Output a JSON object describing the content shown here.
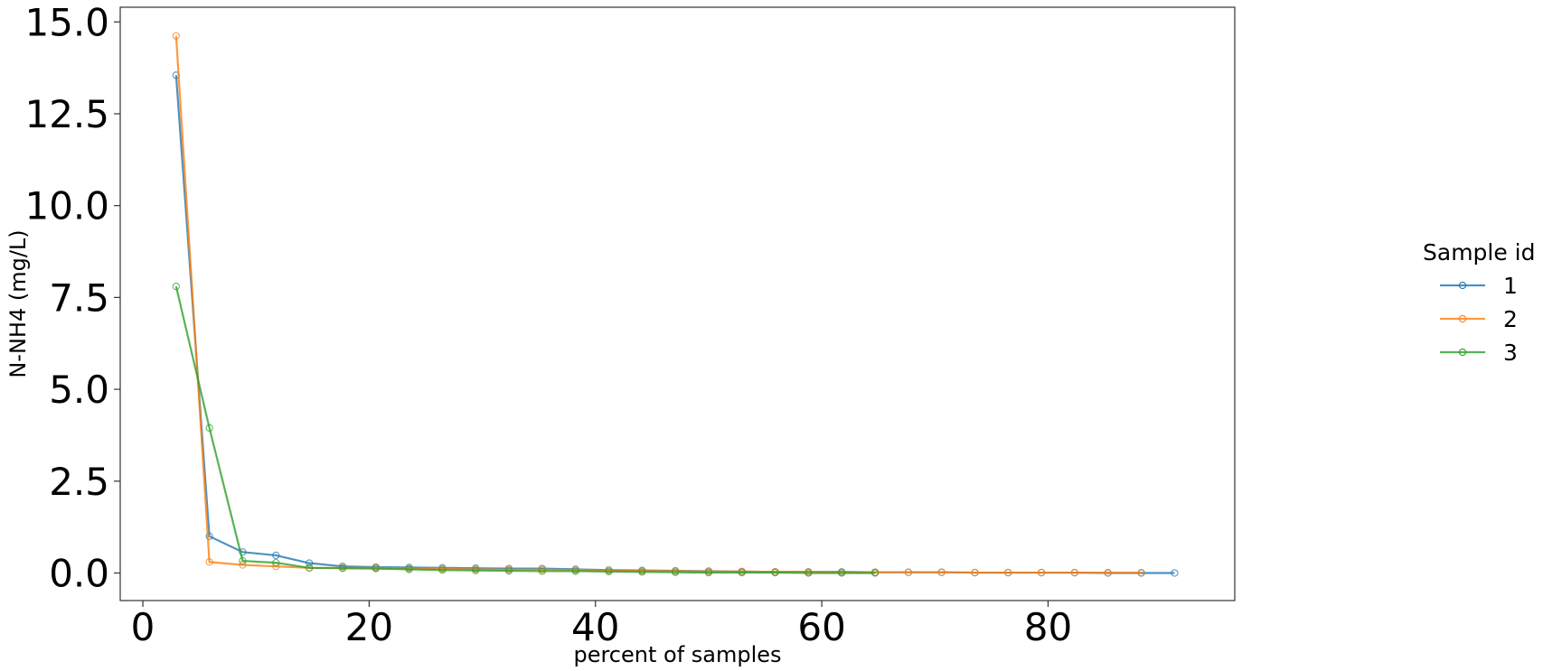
{
  "chart_data": {
    "type": "line",
    "title": "",
    "xlabel": "percent of samples",
    "ylabel": "N-NH4 (mg/L)",
    "xlim": [
      -2.0,
      96.5
    ],
    "ylim": [
      -0.75,
      15.4
    ],
    "xticks": [
      0,
      20,
      40,
      60,
      80
    ],
    "yticks": [
      0.0,
      2.5,
      5.0,
      7.5,
      10.0,
      12.5,
      15.0
    ],
    "xtick_labels": [
      "0",
      "20",
      "40",
      "60",
      "80"
    ],
    "ytick_labels": [
      "0.0",
      "2.5",
      "5.0",
      "7.5",
      "10.0",
      "12.5",
      "15.0"
    ],
    "grid": false,
    "legend": {
      "title": "Sample id",
      "position": "right-outside"
    },
    "marker": "hollow-circle",
    "series": [
      {
        "name": "1",
        "color": "#1f77b4",
        "x": [
          2.94,
          5.88,
          8.82,
          11.76,
          14.71,
          17.65,
          20.59,
          23.53,
          26.47,
          29.41,
          32.35,
          35.29,
          38.24,
          41.18,
          44.12,
          47.06,
          50.0,
          52.94,
          55.88,
          58.82,
          61.76,
          64.71,
          67.65,
          70.59,
          73.53,
          76.47,
          79.41,
          82.35,
          85.29,
          88.24,
          91.18
        ],
        "y": [
          13.55,
          1.0,
          0.57,
          0.48,
          0.27,
          0.18,
          0.16,
          0.15,
          0.14,
          0.13,
          0.12,
          0.12,
          0.1,
          0.08,
          0.07,
          0.06,
          0.05,
          0.04,
          0.03,
          0.03,
          0.03,
          0.02,
          0.02,
          0.02,
          0.01,
          0.01,
          0.01,
          0.01,
          0.0,
          0.0,
          0.0
        ]
      },
      {
        "name": "2",
        "color": "#ff7f0e",
        "x": [
          2.94,
          5.88,
          8.82,
          11.76,
          14.71,
          17.65,
          20.59,
          23.53,
          26.47,
          29.41,
          32.35,
          35.29,
          38.24,
          41.18,
          44.12,
          47.06,
          50.0,
          52.94,
          55.88,
          58.82,
          61.76,
          64.71,
          67.65,
          70.59,
          73.53,
          76.47,
          79.41,
          82.35,
          85.29,
          88.24
        ],
        "y": [
          14.62,
          0.3,
          0.22,
          0.18,
          0.14,
          0.14,
          0.14,
          0.12,
          0.11,
          0.1,
          0.09,
          0.09,
          0.08,
          0.07,
          0.06,
          0.05,
          0.04,
          0.04,
          0.03,
          0.03,
          0.02,
          0.02,
          0.02,
          0.02,
          0.01,
          0.01,
          0.01,
          0.01,
          0.01,
          0.01
        ]
      },
      {
        "name": "3",
        "color": "#2ca02c",
        "x": [
          2.94,
          5.88,
          8.82,
          11.76,
          14.71,
          17.65,
          20.59,
          23.53,
          26.47,
          29.41,
          32.35,
          35.29,
          38.24,
          41.18,
          44.12,
          47.06,
          50.0,
          52.94,
          55.88,
          58.82,
          61.76,
          64.71
        ],
        "y": [
          7.8,
          3.95,
          0.33,
          0.28,
          0.14,
          0.13,
          0.12,
          0.1,
          0.08,
          0.07,
          0.06,
          0.05,
          0.05,
          0.04,
          0.03,
          0.02,
          0.01,
          0.01,
          0.01,
          0.0,
          0.0,
          0.0
        ]
      }
    ]
  }
}
